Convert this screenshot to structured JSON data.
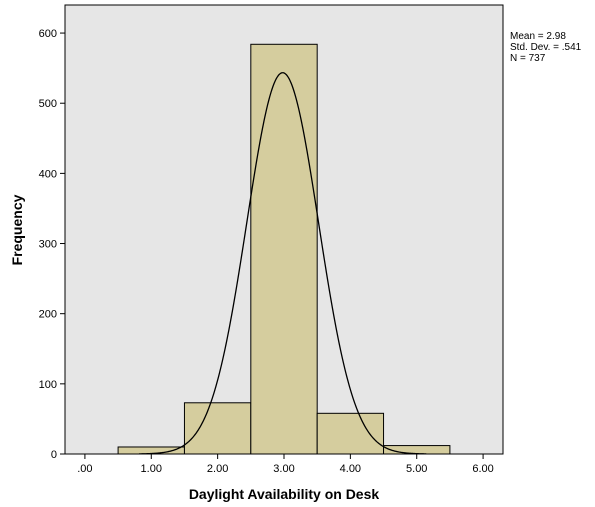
{
  "chart_data": {
    "type": "bar",
    "subtype": "histogram",
    "xlabel": "Daylight Availability on Desk",
    "ylabel": "Frequency",
    "x_ticks": [
      ".00",
      "1.00",
      "2.00",
      "3.00",
      "4.00",
      "5.00",
      "6.00"
    ],
    "y_ticks": [
      "0",
      "100",
      "200",
      "300",
      "400",
      "500",
      "600"
    ],
    "xlim": [
      -0.3,
      6.3
    ],
    "ylim": [
      0,
      640
    ],
    "bins": [
      {
        "x0": 0.5,
        "x1": 1.5,
        "count": 10
      },
      {
        "x0": 1.5,
        "x1": 2.5,
        "count": 73
      },
      {
        "x0": 2.5,
        "x1": 3.5,
        "count": 584
      },
      {
        "x0": 3.5,
        "x1": 4.5,
        "count": 58
      },
      {
        "x0": 4.5,
        "x1": 5.5,
        "count": 12
      }
    ],
    "normal_curve": {
      "mean": 2.98,
      "sd": 0.541,
      "n": 737,
      "bin_width": 1
    },
    "stats_lines": [
      "Mean = 2.98",
      "Std. Dev. = .541",
      "N = 737"
    ],
    "colors": {
      "plot_bg": "#e6e6e6",
      "bar_fill": "#d5cd9e",
      "bar_stroke": "#000000",
      "curve": "#000000"
    },
    "grid": false,
    "legend": "none"
  }
}
